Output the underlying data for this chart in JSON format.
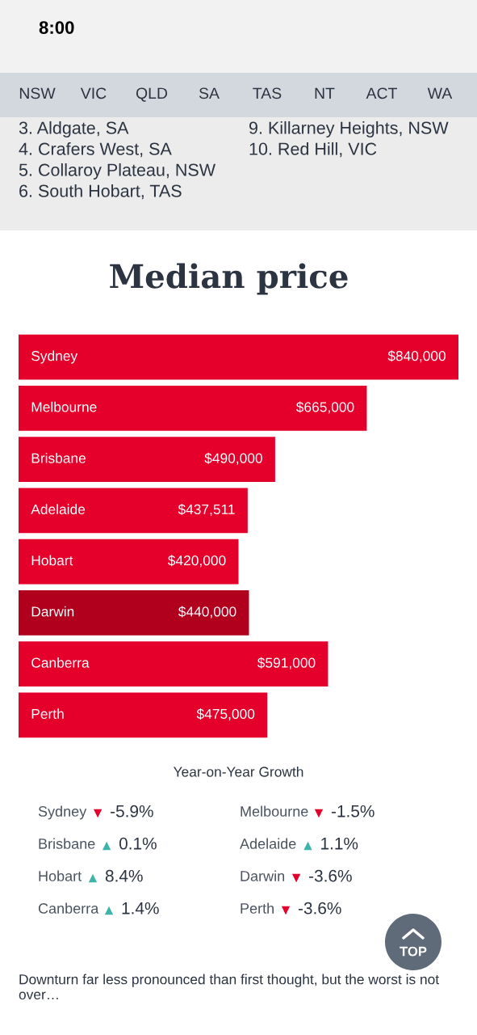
{
  "chart_data": [
    {
      "type": "other",
      "annotations": [
        "8:00",
        "NSW",
        "VIC",
        "QLD",
        "SA",
        "TAS",
        "NT",
        "ACT",
        "WA",
        "3. Aldgate, SA",
        "4. Crafers West, SA",
        "5. Collaroy Plateau, NSW",
        "6. South Hobart, TAS",
        "9. Killarney Heights, NSW",
        "10. Red Hill, VIC",
        "TOP"
      ]
    },
    {
      "type": "bar",
      "orientation": "horizontal",
      "title": "Median price",
      "categories": [
        "Sydney",
        "Melbourne",
        "Brisbane",
        "Adelaide",
        "Hobart",
        "Darwin",
        "Canberra",
        "Perth"
      ],
      "values": [
        840000,
        665000,
        490000,
        437511,
        420000,
        440000,
        591000,
        475000
      ],
      "colors": [
        "#e4002b",
        "#e4002b",
        "#e4002b",
        "#e4002b",
        "#e4002b",
        "#b0001e",
        "#e4002b",
        "#e4002b"
      ],
      "value_labels": [
        "$840,000",
        "$665,000",
        "$490,000",
        "$437,511",
        "$420,000",
        "$440,000",
        "$591,000",
        "$475,000"
      ]
    },
    {
      "type": "other",
      "title": "Year-on-Year Growth",
      "categories": [
        "Sydney",
        "Melbourne",
        "Brisbane",
        "Adelaide",
        "Hobart",
        "Darwin",
        "Canberra",
        "Perth"
      ],
      "values": [
        -5.9,
        -1.5,
        0.1,
        1.1,
        8.4,
        -3.6,
        1.4,
        -3.6
      ],
      "value_labels": [
        "-5.9%",
        "-1.5%",
        "0.1%",
        "1.1%",
        "8.4%",
        "-3.6%",
        "1.4%",
        "-3.6%"
      ],
      "colors": [
        "#e4002b",
        "#e4002b",
        "#3cb4a8",
        "#3cb4a8",
        "#3cb4a8",
        "#e4002b",
        "#3cb4a8",
        "#e4002b"
      ],
      "annotations": [
        "Downturn far less pronounced than first thought, but the worst is not over…"
      ]
    }
  ]
}
